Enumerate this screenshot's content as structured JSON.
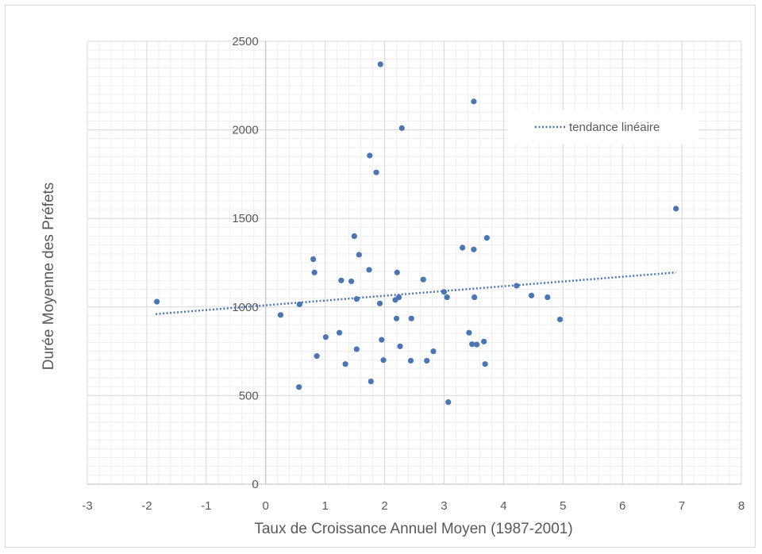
{
  "chart_data": {
    "type": "scatter",
    "xlabel": "Taux de Croissance Annuel Moyen (1987-2001)",
    "ylabel": "Durée Moyenne des Préfets",
    "xlim": [
      -3,
      8
    ],
    "ylim": [
      0,
      2500
    ],
    "x_ticks": [
      -3,
      -2,
      -1,
      0,
      1,
      2,
      3,
      4,
      5,
      6,
      7,
      8
    ],
    "y_ticks": [
      0,
      500,
      1000,
      1500,
      2000,
      2500
    ],
    "grid": true,
    "legend": {
      "placement": "top-right",
      "entries": [
        "tendance linéaire"
      ]
    },
    "colors": {
      "points": "#4a76b4",
      "trend": "#4a76b4",
      "grid_major": "#d9d9d9",
      "grid_minor": "#eeeeee"
    },
    "trendline": {
      "x": [
        -1.85,
        6.9
      ],
      "y": [
        960,
        1195
      ]
    },
    "series": [
      {
        "points": [
          [
            -1.83,
            1030
          ],
          [
            0.25,
            955
          ],
          [
            0.57,
            1015
          ],
          [
            0.56,
            548
          ],
          [
            0.8,
            1270
          ],
          [
            0.82,
            1195
          ],
          [
            0.86,
            723
          ],
          [
            1.01,
            830
          ],
          [
            1.24,
            855
          ],
          [
            1.27,
            1150
          ],
          [
            1.34,
            678
          ],
          [
            1.44,
            1145
          ],
          [
            1.49,
            1400
          ],
          [
            1.53,
            762
          ],
          [
            1.53,
            1045
          ],
          [
            1.57,
            1295
          ],
          [
            1.74,
            1210
          ],
          [
            1.75,
            1855
          ],
          [
            1.77,
            580
          ],
          [
            1.86,
            1760
          ],
          [
            1.93,
            2370
          ],
          [
            1.92,
            1020
          ],
          [
            1.95,
            815
          ],
          [
            1.98,
            700
          ],
          [
            2.18,
            1040
          ],
          [
            2.2,
            935
          ],
          [
            2.21,
            1195
          ],
          [
            2.24,
            1055
          ],
          [
            2.26,
            778
          ],
          [
            2.29,
            2010
          ],
          [
            2.44,
            697
          ],
          [
            2.45,
            935
          ],
          [
            2.65,
            1155
          ],
          [
            2.71,
            697
          ],
          [
            2.82,
            750
          ],
          [
            3.0,
            1085
          ],
          [
            3.05,
            1055
          ],
          [
            3.07,
            463
          ],
          [
            3.31,
            1335
          ],
          [
            3.42,
            855
          ],
          [
            3.47,
            790
          ],
          [
            3.5,
            1325
          ],
          [
            3.5,
            2160
          ],
          [
            3.51,
            1055
          ],
          [
            3.55,
            788
          ],
          [
            3.67,
            805
          ],
          [
            3.69,
            678
          ],
          [
            3.72,
            1390
          ],
          [
            4.22,
            1120
          ],
          [
            4.47,
            1065
          ],
          [
            4.74,
            1055
          ],
          [
            4.95,
            930
          ],
          [
            6.9,
            1555
          ]
        ]
      }
    ]
  }
}
